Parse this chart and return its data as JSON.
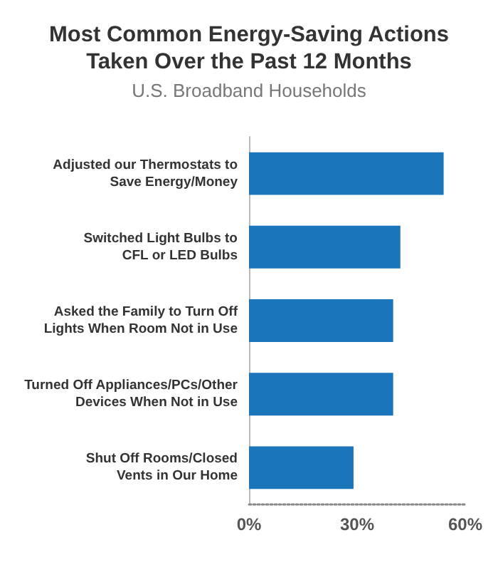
{
  "chart_data": {
    "type": "bar",
    "orientation": "horizontal",
    "title": "Most Common Energy-Saving Actions\nTaken Over the Past 12 Months",
    "subtitle": "U.S. Broadband Households",
    "categories": [
      "Adjusted our Thermostats to\nSave Energy/Money",
      "Switched Light Bulbs to\nCFL or LED Bulbs",
      "Asked the Family to Turn Off\nLights When Room Not in Use",
      "Turned Off Appliances/PCs/Other\nDevices When Not in Use",
      "Shut Off Rooms/Closed\nVents in Our Home"
    ],
    "values": [
      54,
      42,
      40,
      40,
      29
    ],
    "color": "#1a75bb",
    "xlim": [
      0,
      60
    ],
    "xticks": [
      {
        "value": 0,
        "label": "0%"
      },
      {
        "value": 30,
        "label": "30%"
      },
      {
        "value": 60,
        "label": "60%"
      }
    ],
    "grid": false
  }
}
